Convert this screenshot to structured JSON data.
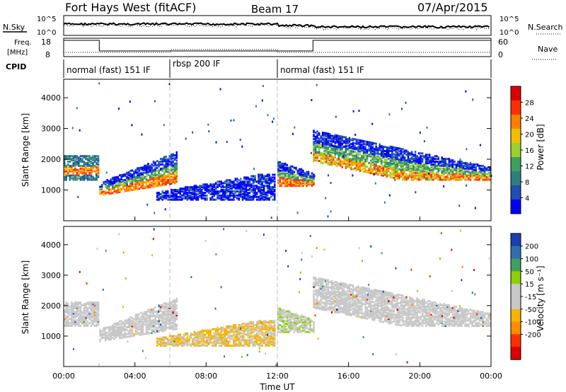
{
  "header": {
    "title": "Fort Hays West (fitACF)",
    "beam": "Beam 17",
    "date": "07/Apr/2015"
  },
  "sky_panel": {
    "left_label": "N.Sky",
    "right_label": "N.Search",
    "left_ticks": [
      "10^5",
      "10^0"
    ],
    "right_ticks": [
      "10^5",
      "10^0"
    ]
  },
  "freq_panel": {
    "left_label_1": "Freq.",
    "left_label_2": "[MHz]",
    "left_ticks": [
      "18",
      "8"
    ],
    "right_ticks": [
      "60",
      "0"
    ],
    "right_label": "Nave"
  },
  "cpid": {
    "label": "CPID",
    "segments": [
      {
        "name": "normal (fast) 151 IF",
        "start": 0,
        "end": 6
      },
      {
        "name": "rbsp 200 IF",
        "start": 6,
        "end": 12
      },
      {
        "name": "normal (fast) 151 IF",
        "start": 12,
        "end": 24
      }
    ]
  },
  "colors": {
    "power_scale": [
      "#0000ff",
      "#1f4fb4",
      "#2f7f7f",
      "#3fa05a",
      "#9fcf2f",
      "#f0c000",
      "#ff7f00",
      "#ff3000",
      "#dd0000"
    ],
    "velocity_scale": [
      "#dd0000",
      "#ff3000",
      "#ff8c00",
      "#f5b400",
      "#c8c8c8",
      "#c8c8c8",
      "#8fd000",
      "#3fa060",
      "#2f6fb0",
      "#1a3fb0"
    ]
  },
  "chart_data": [
    {
      "type": "heatmap",
      "name": "power",
      "ylabel": "Slant Range [km]",
      "ylim": [
        0,
        4600
      ],
      "yticks": [
        "1000",
        "2000",
        "3000",
        "4000"
      ],
      "xlim": [
        0,
        24
      ],
      "colorbar": {
        "label": "Power [dB]",
        "ticks": [
          "4",
          "8",
          "12",
          "16",
          "20",
          "24",
          "28"
        ],
        "range": [
          0,
          32
        ]
      },
      "regions": [
        {
          "t0": 0.0,
          "t1": 2.0,
          "r0": 1300,
          "r1": 2100,
          "level": "mid"
        },
        {
          "t0": 2.0,
          "t1": 6.3,
          "r0": 800,
          "r1": 2200,
          "level": "strong-low"
        },
        {
          "t0": 5.2,
          "t1": 11.8,
          "r0": 650,
          "r1": 1500,
          "level": "weak"
        },
        {
          "t0": 12.0,
          "t1": 14.0,
          "r0": 1100,
          "r1": 1900,
          "level": "strong-low"
        },
        {
          "t0": 14.0,
          "t1": 24.0,
          "r0": 1300,
          "r1": 2900,
          "level": "strong-band"
        }
      ]
    },
    {
      "type": "heatmap",
      "name": "velocity",
      "ylabel": "Slant Range [km]",
      "ylim": [
        0,
        4600
      ],
      "yticks": [
        "1000",
        "2000",
        "3000",
        "4000"
      ],
      "xlim": [
        0,
        24
      ],
      "xticks": [
        "00:00",
        "04:00",
        "08:00",
        "12:00",
        "16:00",
        "20:00",
        "00:00"
      ],
      "xlabel": "Time UT",
      "colorbar": {
        "label": "Velocity [m s⁻¹]",
        "ticks": [
          "200",
          "100",
          "50",
          "15",
          "-15",
          "-50",
          "-100",
          "-200"
        ]
      }
    }
  ]
}
